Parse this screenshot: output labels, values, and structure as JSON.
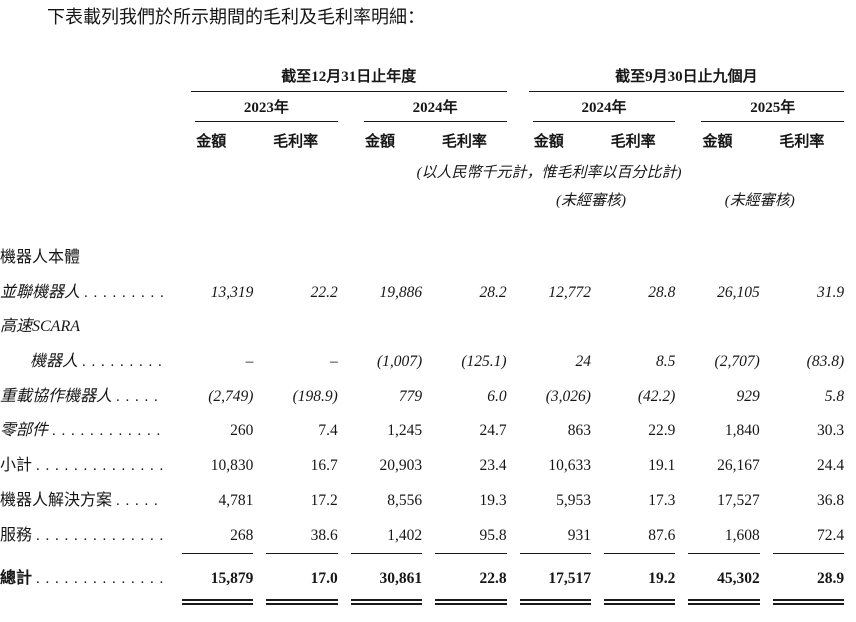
{
  "intro": "下表載列我們於所示期間的毛利及毛利率明細：",
  "table": {
    "groups": [
      {
        "label": "截至12月31日止年度"
      },
      {
        "label": "截至9月30日止九個月"
      }
    ],
    "years": [
      {
        "label": "2023年"
      },
      {
        "label": "2024年"
      },
      {
        "label": "2024年"
      },
      {
        "label": "2025年"
      }
    ],
    "sub_headers": {
      "amount": "金額",
      "margin": "毛利率"
    },
    "unit_note": "(以人民幣千元計，惟毛利率以百分比計)",
    "unaudited": "(未經審核)",
    "rows": [
      {
        "label": "機器人本體",
        "values": []
      },
      {
        "label": "並聯機器人",
        "values": [
          "13,319",
          "22.2",
          "19,886",
          "28.2",
          "12,772",
          "28.8",
          "26,105",
          "31.9"
        ]
      },
      {
        "label": "高速SCARA",
        "values": []
      },
      {
        "label": "機器人",
        "values": [
          "–",
          "–",
          "(1,007)",
          "(125.1)",
          "24",
          "8.5",
          "(2,707)",
          "(83.8)"
        ]
      },
      {
        "label": "重載協作機器人",
        "values": [
          "(2,749)",
          "(198.9)",
          "779",
          "6.0",
          "(3,026)",
          "(42.2)",
          "929",
          "5.8"
        ]
      },
      {
        "label": "零部件",
        "values": [
          "260",
          "7.4",
          "1,245",
          "24.7",
          "863",
          "22.9",
          "1,840",
          "30.3"
        ]
      },
      {
        "label": "小計",
        "values": [
          "10,830",
          "16.7",
          "20,903",
          "23.4",
          "10,633",
          "19.1",
          "26,167",
          "24.4"
        ]
      },
      {
        "label": "機器人解決方案",
        "values": [
          "4,781",
          "17.2",
          "8,556",
          "19.3",
          "5,953",
          "17.3",
          "17,527",
          "36.8"
        ]
      },
      {
        "label": "服務",
        "values": [
          "268",
          "38.6",
          "1,402",
          "95.8",
          "931",
          "87.6",
          "1,608",
          "72.4"
        ]
      },
      {
        "label": "總計",
        "values": [
          "15,879",
          "17.0",
          "30,861",
          "22.8",
          "17,517",
          "19.2",
          "45,302",
          "28.9"
        ]
      }
    ]
  }
}
